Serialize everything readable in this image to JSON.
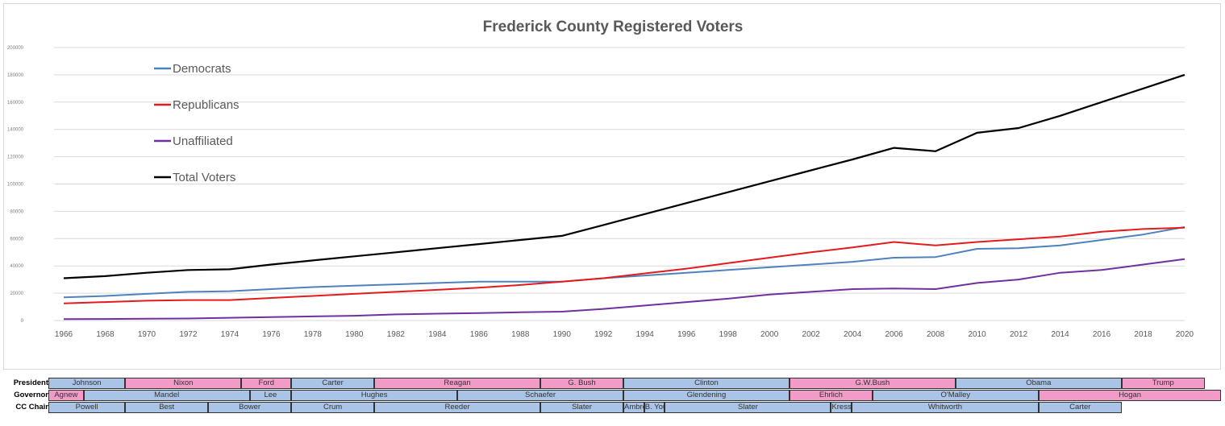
{
  "chart_data": {
    "type": "line",
    "title": "Frederick County Registered Voters",
    "xlabel": "",
    "ylabel": "",
    "x": [
      1966,
      1968,
      1970,
      1972,
      1974,
      1976,
      1978,
      1980,
      1982,
      1984,
      1986,
      1988,
      1990,
      1992,
      1994,
      1996,
      1998,
      2000,
      2002,
      2004,
      2006,
      2008,
      2010,
      2012,
      2014,
      2016,
      2018,
      2020
    ],
    "ylim": [
      0,
      200000
    ],
    "yticks": [
      0,
      20000,
      40000,
      60000,
      80000,
      100000,
      120000,
      140000,
      160000,
      180000,
      200000
    ],
    "ytick_labels": [
      "0",
      "20000",
      "40000",
      "60000",
      "80000",
      "100000",
      "120000",
      "140000",
      "160000",
      "180000",
      "200000"
    ],
    "grid": true,
    "legend_position": "upper-left",
    "series": [
      {
        "name": "Democrats",
        "color": "#4f81bd",
        "values": [
          17000,
          18000,
          19500,
          21000,
          21500,
          23000,
          24500,
          25500,
          26500,
          27500,
          28500,
          28500,
          28500,
          31000,
          33000,
          35000,
          37000,
          39000,
          41000,
          43000,
          46000,
          46500,
          52500,
          53000,
          55000,
          59000,
          63000,
          68500
        ]
      },
      {
        "name": "Republicans",
        "color": "#e41a1c",
        "values": [
          12500,
          13500,
          14500,
          15000,
          15000,
          16500,
          18000,
          19500,
          21000,
          22500,
          24000,
          26000,
          28500,
          31000,
          34500,
          38000,
          42000,
          46000,
          50000,
          53500,
          57500,
          55000,
          57500,
          59500,
          61500,
          65000,
          67000,
          68000
        ]
      },
      {
        "name": "Unaffiliated",
        "color": "#7030a0",
        "values": [
          1000,
          1100,
          1300,
          1500,
          2000,
          2500,
          3000,
          3500,
          4500,
          5000,
          5500,
          6000,
          6500,
          8500,
          11000,
          13500,
          16000,
          19000,
          21000,
          23000,
          23500,
          23000,
          27500,
          30000,
          35000,
          37000,
          41000,
          45000
        ]
      },
      {
        "name": "Total Voters",
        "color": "#000000",
        "values": [
          31000,
          32500,
          35000,
          37000,
          37500,
          41000,
          44000,
          47000,
          50000,
          53000,
          56000,
          59000,
          62000,
          70000,
          78000,
          86000,
          94000,
          102000,
          110000,
          118000,
          126500,
          124000,
          137500,
          141000,
          150000,
          160000,
          170000,
          180000
        ]
      }
    ]
  },
  "timeline": {
    "rows": [
      {
        "label": "President",
        "cells": [
          {
            "text": "Johnson",
            "start": 1965.0,
            "end": 1969.0,
            "party": "D"
          },
          {
            "text": "Nixon",
            "start": 1969.0,
            "end": 1974.6,
            "party": "R"
          },
          {
            "text": "Ford",
            "start": 1974.6,
            "end": 1977.0,
            "party": "R"
          },
          {
            "text": "Carter",
            "start": 1977.0,
            "end": 1981.0,
            "party": "D"
          },
          {
            "text": "Reagan",
            "start": 1981.0,
            "end": 1989.0,
            "party": "R"
          },
          {
            "text": "G. Bush",
            "start": 1989.0,
            "end": 1993.0,
            "party": "R"
          },
          {
            "text": "Clinton",
            "start": 1993.0,
            "end": 2001.0,
            "party": "D"
          },
          {
            "text": "G.W.Bush",
            "start": 2001.0,
            "end": 2009.0,
            "party": "R"
          },
          {
            "text": "Obama",
            "start": 2009.0,
            "end": 2017.0,
            "party": "D"
          },
          {
            "text": "Trump",
            "start": 2017.0,
            "end": 2021.0,
            "party": "R"
          }
        ]
      },
      {
        "label": "Governor",
        "cells": [
          {
            "text": "Agnew",
            "start": 1965.0,
            "end": 1967.0,
            "party": "R"
          },
          {
            "text": "Mandel",
            "start": 1967.0,
            "end": 1975.0,
            "party": "D"
          },
          {
            "text": "Lee",
            "start": 1975.0,
            "end": 1977.0,
            "party": "D"
          },
          {
            "text": "Hughes",
            "start": 1977.0,
            "end": 1985.0,
            "party": "D"
          },
          {
            "text": "Schaefer",
            "start": 1985.0,
            "end": 1993.0,
            "party": "D"
          },
          {
            "text": "Glendening",
            "start": 1993.0,
            "end": 2001.0,
            "party": "D"
          },
          {
            "text": "Ehrlich",
            "start": 2001.0,
            "end": 2005.0,
            "party": "R"
          },
          {
            "text": "O'Malley",
            "start": 2005.0,
            "end": 2013.0,
            "party": "D"
          },
          {
            "text": "Hogan",
            "start": 2013.0,
            "end": 2021.8,
            "party": "R"
          }
        ]
      },
      {
        "label": "CC Chair",
        "cells": [
          {
            "text": "Powell",
            "start": 1965.0,
            "end": 1969.0,
            "party": "D"
          },
          {
            "text": "Best",
            "start": 1969.0,
            "end": 1973.0,
            "party": "D"
          },
          {
            "text": "Bower",
            "start": 1973.0,
            "end": 1977.0,
            "party": "D"
          },
          {
            "text": "Crum",
            "start": 1977.0,
            "end": 1981.0,
            "party": "D"
          },
          {
            "text": "Reeder",
            "start": 1981.0,
            "end": 1989.0,
            "party": "D"
          },
          {
            "text": "Slater",
            "start": 1989.0,
            "end": 1993.0,
            "party": "D"
          },
          {
            "text": "Ambrose",
            "start": 1993.0,
            "end": 1994.0,
            "party": "D"
          },
          {
            "text": "B. Young",
            "start": 1994.0,
            "end": 1995.0,
            "party": "D"
          },
          {
            "text": "Slater",
            "start": 1995.0,
            "end": 2003.0,
            "party": "D"
          },
          {
            "text": "Kresslein",
            "start": 2003.0,
            "end": 2004.0,
            "party": "D"
          },
          {
            "text": "Whitworth",
            "start": 2004.0,
            "end": 2013.0,
            "party": "D"
          },
          {
            "text": "Carter",
            "start": 2013.0,
            "end": 2017.0,
            "party": "D"
          }
        ]
      }
    ]
  },
  "colors": {
    "democrat_fill": "#a9c4e6",
    "republican_fill": "#f29bc9",
    "gridline": "#d9d9d9"
  }
}
